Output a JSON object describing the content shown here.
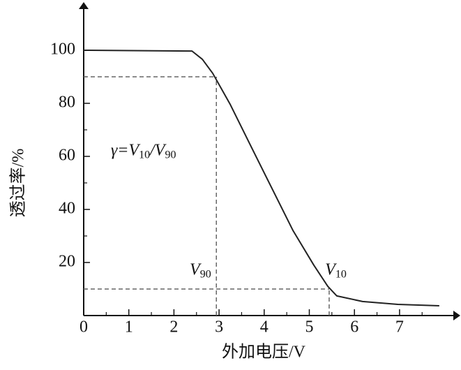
{
  "chart_data": {
    "type": "line",
    "x_label": "外加电压/V",
    "y_label": "透过率/%",
    "x": [
      0,
      2.4,
      2.63,
      2.86,
      3.25,
      3.71,
      4.17,
      4.64,
      5.1,
      5.41,
      5.61,
      6.18,
      6.96,
      7.88
    ],
    "series": [
      {
        "color": "#222222",
        "values": [
          100,
          99.7,
          96.6,
          91.3,
          79.5,
          63.7,
          48,
          32,
          19,
          11,
          7.4,
          5.3,
          4.2,
          3.7
        ]
      }
    ],
    "xlim": [
      0,
      8.2
    ],
    "ylim": [
      0,
      115
    ],
    "xticks": [
      0,
      1,
      2,
      3,
      4,
      5,
      6,
      7
    ],
    "yticks": [
      20,
      40,
      60,
      80,
      100
    ],
    "x_minor_ticks": [
      0.5,
      1.5,
      2.5,
      3.5,
      4.5,
      5.5,
      6.5,
      7.5
    ],
    "y_minor_ticks": [
      10,
      30,
      50,
      70,
      90
    ],
    "reference_points": [
      {
        "x": 2.94,
        "y": 90
      },
      {
        "x": 5.44,
        "y": 10
      }
    ],
    "annotations": [
      {
        "x": 0.6,
        "y": 62,
        "parts": [
          {
            "text": "γ=V"
          },
          {
            "text": "10",
            "sub": true
          },
          {
            "text": "/V"
          },
          {
            "text": "90",
            "sub": true
          }
        ]
      },
      {
        "x": 2.35,
        "y": 17,
        "parts": [
          {
            "text": "V"
          },
          {
            "text": "90",
            "sub": true
          }
        ]
      },
      {
        "x": 5.35,
        "y": 17,
        "parts": [
          {
            "text": "V"
          },
          {
            "text": "10",
            "sub": true
          }
        ]
      }
    ]
  }
}
